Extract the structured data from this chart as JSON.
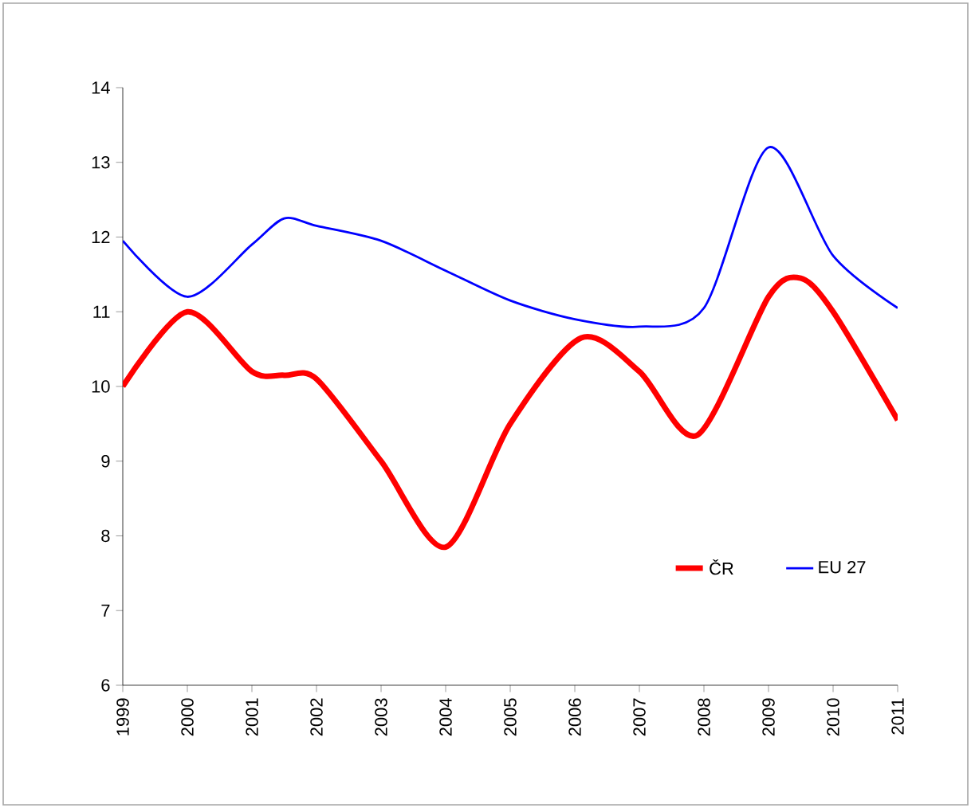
{
  "chart_data": {
    "type": "line",
    "xlim": [
      1999,
      2011
    ],
    "xticks": [
      1999,
      2000,
      2001,
      2002,
      2003,
      2004,
      2005,
      2006,
      2007,
      2008,
      2009,
      2010,
      2011
    ],
    "ylim": [
      6,
      14
    ],
    "yticks": [
      6,
      7,
      8,
      9,
      10,
      11,
      12,
      13,
      14
    ],
    "legend": "bottom right",
    "grid": false,
    "marker": "none",
    "line_style": "solid",
    "series": [
      {
        "name": "ČR",
        "color": "#ff0000",
        "x": [
          1999,
          2000,
          2001,
          2001.5,
          2002,
          2003,
          2004,
          2005,
          2006.1,
          2007,
          2007.9,
          2009,
          2009.5,
          2010,
          2011
        ],
        "values": [
          10.0,
          11.0,
          10.2,
          10.15,
          10.1,
          9.0,
          7.85,
          9.5,
          10.65,
          10.2,
          9.35,
          11.2,
          11.45,
          11.0,
          9.55
        ]
      },
      {
        "name": "EU 27",
        "color": "#0000ff",
        "x": [
          1999,
          2000,
          2001,
          2001.5,
          2002,
          2003,
          2004,
          2005,
          2006,
          2007,
          2008,
          2009,
          2010,
          2011
        ],
        "values": [
          11.95,
          11.2,
          11.9,
          12.25,
          12.15,
          11.95,
          11.55,
          11.15,
          10.9,
          10.8,
          11.05,
          13.2,
          11.75,
          11.05
        ]
      }
    ]
  }
}
